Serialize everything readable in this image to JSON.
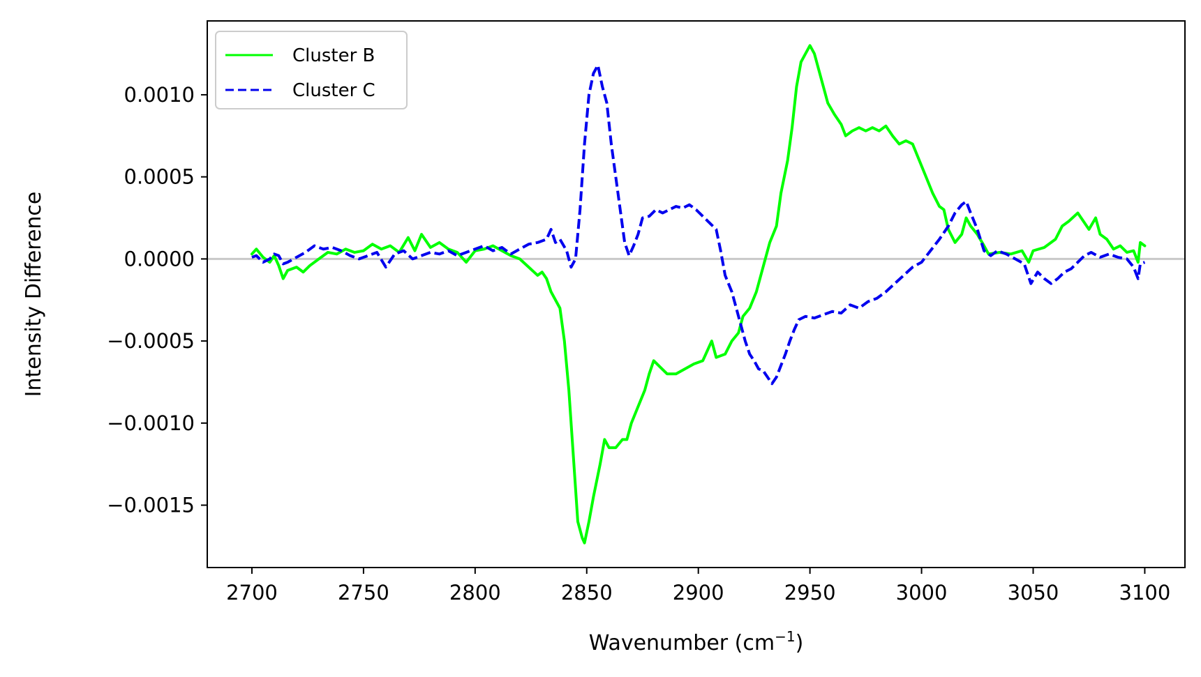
{
  "chart_data": {
    "type": "line",
    "xlabel": "Wavenumber (cm",
    "xlabel_sup": "−1",
    "xlabel_end": ")",
    "ylabel": "Intensity Difference",
    "xlim": [
      2680,
      3118
    ],
    "ylim": [
      -0.00188,
      0.00145
    ],
    "x_ticks": [
      2700,
      2750,
      2800,
      2850,
      2900,
      2950,
      3000,
      3050,
      3100
    ],
    "y_ticks": [
      0.001,
      0.0005,
      0.0,
      -0.0005,
      -0.001,
      -0.0015
    ],
    "x_tick_labels": [
      "2700",
      "2750",
      "2800",
      "2850",
      "2900",
      "2950",
      "3000",
      "3050",
      "3100"
    ],
    "y_tick_labels": [
      "0.0010",
      "0.0005",
      "0.0000",
      "−0.0005",
      "−0.0010",
      "−0.0015"
    ],
    "zero_line": {
      "y": 0.0,
      "color": "#c8c8c8"
    },
    "grid": false,
    "legend_placement": "top-left",
    "series": [
      {
        "name": "Cluster B",
        "color": "#00ff00",
        "style": "solid",
        "points": [
          [
            2700,
            3e-05
          ],
          [
            2702,
            6e-05
          ],
          [
            2705,
            1e-05
          ],
          [
            2708,
            -2e-05
          ],
          [
            2710,
            2e-05
          ],
          [
            2712,
            -4e-05
          ],
          [
            2714,
            -0.00012
          ],
          [
            2716,
            -7e-05
          ],
          [
            2720,
            -5e-05
          ],
          [
            2723,
            -8e-05
          ],
          [
            2726,
            -4e-05
          ],
          [
            2730,
            0.0
          ],
          [
            2734,
            4e-05
          ],
          [
            2738,
            3e-05
          ],
          [
            2742,
            6e-05
          ],
          [
            2746,
            4e-05
          ],
          [
            2750,
            5e-05
          ],
          [
            2754,
            9e-05
          ],
          [
            2758,
            6e-05
          ],
          [
            2762,
            8e-05
          ],
          [
            2766,
            4e-05
          ],
          [
            2770,
            0.00013
          ],
          [
            2773,
            5e-05
          ],
          [
            2776,
            0.00015
          ],
          [
            2780,
            7e-05
          ],
          [
            2784,
            0.0001
          ],
          [
            2788,
            6e-05
          ],
          [
            2792,
            4e-05
          ],
          [
            2796,
            -2e-05
          ],
          [
            2800,
            5e-05
          ],
          [
            2804,
            6e-05
          ],
          [
            2808,
            8e-05
          ],
          [
            2812,
            5e-05
          ],
          [
            2816,
            2e-05
          ],
          [
            2820,
            0.0
          ],
          [
            2824,
            -5e-05
          ],
          [
            2828,
            -0.0001
          ],
          [
            2830,
            -8e-05
          ],
          [
            2832,
            -0.00012
          ],
          [
            2834,
            -0.0002
          ],
          [
            2836,
            -0.00025
          ],
          [
            2838,
            -0.0003
          ],
          [
            2840,
            -0.0005
          ],
          [
            2842,
            -0.0008
          ],
          [
            2844,
            -0.0012
          ],
          [
            2846,
            -0.0016
          ],
          [
            2848,
            -0.0017
          ],
          [
            2849,
            -0.00173
          ],
          [
            2851,
            -0.0016
          ],
          [
            2853,
            -0.00145
          ],
          [
            2856,
            -0.00125
          ],
          [
            2858,
            -0.0011
          ],
          [
            2860,
            -0.00115
          ],
          [
            2863,
            -0.00115
          ],
          [
            2866,
            -0.0011
          ],
          [
            2868,
            -0.0011
          ],
          [
            2870,
            -0.001
          ],
          [
            2873,
            -0.0009
          ],
          [
            2876,
            -0.0008
          ],
          [
            2878,
            -0.0007
          ],
          [
            2880,
            -0.00062
          ],
          [
            2883,
            -0.00066
          ],
          [
            2886,
            -0.0007
          ],
          [
            2890,
            -0.0007
          ],
          [
            2894,
            -0.00067
          ],
          [
            2898,
            -0.00064
          ],
          [
            2902,
            -0.00062
          ],
          [
            2906,
            -0.0005
          ],
          [
            2908,
            -0.0006
          ],
          [
            2912,
            -0.00058
          ],
          [
            2915,
            -0.0005
          ],
          [
            2918,
            -0.00045
          ],
          [
            2920,
            -0.00035
          ],
          [
            2923,
            -0.0003
          ],
          [
            2926,
            -0.0002
          ],
          [
            2929,
            -5e-05
          ],
          [
            2932,
            0.0001
          ],
          [
            2935,
            0.0002
          ],
          [
            2937,
            0.0004
          ],
          [
            2940,
            0.0006
          ],
          [
            2942,
            0.0008
          ],
          [
            2944,
            0.00105
          ],
          [
            2946,
            0.0012
          ],
          [
            2948,
            0.00125
          ],
          [
            2950,
            0.0013
          ],
          [
            2952,
            0.00125
          ],
          [
            2954,
            0.00115
          ],
          [
            2956,
            0.00105
          ],
          [
            2958,
            0.00095
          ],
          [
            2961,
            0.00088
          ],
          [
            2964,
            0.00082
          ],
          [
            2966,
            0.00075
          ],
          [
            2969,
            0.00078
          ],
          [
            2972,
            0.0008
          ],
          [
            2975,
            0.00078
          ],
          [
            2978,
            0.0008
          ],
          [
            2981,
            0.00078
          ],
          [
            2984,
            0.00081
          ],
          [
            2987,
            0.00075
          ],
          [
            2990,
            0.0007
          ],
          [
            2993,
            0.00072
          ],
          [
            2996,
            0.0007
          ],
          [
            2999,
            0.0006
          ],
          [
            3002,
            0.0005
          ],
          [
            3005,
            0.0004
          ],
          [
            3008,
            0.00032
          ],
          [
            3010,
            0.0003
          ],
          [
            3012,
            0.00018
          ],
          [
            3015,
            0.0001
          ],
          [
            3018,
            0.00015
          ],
          [
            3020,
            0.00025
          ],
          [
            3022,
            0.0002
          ],
          [
            3025,
            0.00015
          ],
          [
            3028,
            8e-05
          ],
          [
            3030,
            3e-05
          ],
          [
            3035,
            4e-05
          ],
          [
            3040,
            3e-05
          ],
          [
            3045,
            5e-05
          ],
          [
            3048,
            -2e-05
          ],
          [
            3050,
            5e-05
          ],
          [
            3055,
            7e-05
          ],
          [
            3060,
            0.00012
          ],
          [
            3063,
            0.0002
          ],
          [
            3066,
            0.00023
          ],
          [
            3070,
            0.00028
          ],
          [
            3072,
            0.00024
          ],
          [
            3075,
            0.00018
          ],
          [
            3078,
            0.00025
          ],
          [
            3080,
            0.00015
          ],
          [
            3083,
            0.00012
          ],
          [
            3086,
            6e-05
          ],
          [
            3089,
            8e-05
          ],
          [
            3092,
            4e-05
          ],
          [
            3095,
            5e-05
          ],
          [
            3097,
            -2e-05
          ],
          [
            3098,
            0.0001
          ],
          [
            3100,
            8e-05
          ]
        ]
      },
      {
        "name": "Cluster C",
        "color": "#0000ee",
        "style": "dashed",
        "points": [
          [
            2700,
            1e-05
          ],
          [
            2702,
            2e-05
          ],
          [
            2705,
            -2e-05
          ],
          [
            2708,
            0.0
          ],
          [
            2710,
            3e-05
          ],
          [
            2712,
            2e-05
          ],
          [
            2714,
            -3e-05
          ],
          [
            2716,
            -2e-05
          ],
          [
            2720,
            1e-05
          ],
          [
            2724,
            4e-05
          ],
          [
            2728,
            8e-05
          ],
          [
            2732,
            6e-05
          ],
          [
            2736,
            7e-05
          ],
          [
            2740,
            5e-05
          ],
          [
            2744,
            2e-05
          ],
          [
            2748,
            0.0
          ],
          [
            2752,
            2e-05
          ],
          [
            2756,
            4e-05
          ],
          [
            2760,
            -5e-05
          ],
          [
            2764,
            3e-05
          ],
          [
            2768,
            5e-05
          ],
          [
            2772,
            0.0
          ],
          [
            2776,
            2e-05
          ],
          [
            2780,
            4e-05
          ],
          [
            2784,
            3e-05
          ],
          [
            2788,
            5e-05
          ],
          [
            2792,
            2e-05
          ],
          [
            2796,
            4e-05
          ],
          [
            2800,
            6e-05
          ],
          [
            2804,
            8e-05
          ],
          [
            2808,
            5e-05
          ],
          [
            2812,
            7e-05
          ],
          [
            2816,
            3e-05
          ],
          [
            2820,
            6e-05
          ],
          [
            2824,
            9e-05
          ],
          [
            2828,
            0.0001
          ],
          [
            2832,
            0.00012
          ],
          [
            2834,
            0.00018
          ],
          [
            2836,
            0.0001
          ],
          [
            2838,
            0.00012
          ],
          [
            2841,
            5e-05
          ],
          [
            2843,
            -5e-05
          ],
          [
            2845,
            0.0
          ],
          [
            2847,
            0.0003
          ],
          [
            2849,
            0.0007
          ],
          [
            2851,
            0.001
          ],
          [
            2853,
            0.00113
          ],
          [
            2855,
            0.00118
          ],
          [
            2857,
            0.00105
          ],
          [
            2859,
            0.00095
          ],
          [
            2861,
            0.0007
          ],
          [
            2863,
            0.0005
          ],
          [
            2865,
            0.0003
          ],
          [
            2867,
            0.0001
          ],
          [
            2869,
            2e-05
          ],
          [
            2871,
            8e-05
          ],
          [
            2873,
            0.00015
          ],
          [
            2875,
            0.00025
          ],
          [
            2878,
            0.00026
          ],
          [
            2881,
            0.0003
          ],
          [
            2884,
            0.00028
          ],
          [
            2887,
            0.0003
          ],
          [
            2890,
            0.00032
          ],
          [
            2893,
            0.00031
          ],
          [
            2896,
            0.00033
          ],
          [
            2899,
            0.0003
          ],
          [
            2902,
            0.00026
          ],
          [
            2905,
            0.00022
          ],
          [
            2908,
            0.00018
          ],
          [
            2910,
            5e-05
          ],
          [
            2912,
            -0.0001
          ],
          [
            2915,
            -0.0002
          ],
          [
            2917,
            -0.0003
          ],
          [
            2919,
            -0.0004
          ],
          [
            2921,
            -0.0005
          ],
          [
            2923,
            -0.00058
          ],
          [
            2925,
            -0.00062
          ],
          [
            2927,
            -0.00067
          ],
          [
            2929,
            -0.00068
          ],
          [
            2931,
            -0.00072
          ],
          [
            2933,
            -0.00076
          ],
          [
            2935,
            -0.00072
          ],
          [
            2937,
            -0.00065
          ],
          [
            2939,
            -0.00058
          ],
          [
            2941,
            -0.0005
          ],
          [
            2943,
            -0.00043
          ],
          [
            2945,
            -0.00037
          ],
          [
            2948,
            -0.00035
          ],
          [
            2952,
            -0.00036
          ],
          [
            2956,
            -0.00034
          ],
          [
            2960,
            -0.00032
          ],
          [
            2964,
            -0.00033
          ],
          [
            2968,
            -0.00028
          ],
          [
            2972,
            -0.0003
          ],
          [
            2976,
            -0.00026
          ],
          [
            2980,
            -0.00024
          ],
          [
            2984,
            -0.0002
          ],
          [
            2988,
            -0.00015
          ],
          [
            2992,
            -0.0001
          ],
          [
            2996,
            -5e-05
          ],
          [
            3000,
            -2e-05
          ],
          [
            3004,
            5e-05
          ],
          [
            3008,
            0.00012
          ],
          [
            3012,
            0.0002
          ],
          [
            3015,
            0.00028
          ],
          [
            3018,
            0.00033
          ],
          [
            3020,
            0.00035
          ],
          [
            3022,
            0.00028
          ],
          [
            3025,
            0.00018
          ],
          [
            3028,
            5e-05
          ],
          [
            3031,
            2e-05
          ],
          [
            3034,
            5e-05
          ],
          [
            3038,
            3e-05
          ],
          [
            3042,
            0.0
          ],
          [
            3046,
            -3e-05
          ],
          [
            3049,
            -0.00015
          ],
          [
            3052,
            -8e-05
          ],
          [
            3055,
            -0.00012
          ],
          [
            3058,
            -0.00015
          ],
          [
            3061,
            -0.00012
          ],
          [
            3064,
            -8e-05
          ],
          [
            3067,
            -6e-05
          ],
          [
            3070,
            -2e-05
          ],
          [
            3073,
            2e-05
          ],
          [
            3076,
            4e-05
          ],
          [
            3080,
            1e-05
          ],
          [
            3084,
            3e-05
          ],
          [
            3088,
            1e-05
          ],
          [
            3092,
            0.0
          ],
          [
            3095,
            -5e-05
          ],
          [
            3097,
            -0.00012
          ],
          [
            3098,
            -3e-05
          ],
          [
            3100,
            -2e-05
          ]
        ]
      }
    ]
  }
}
